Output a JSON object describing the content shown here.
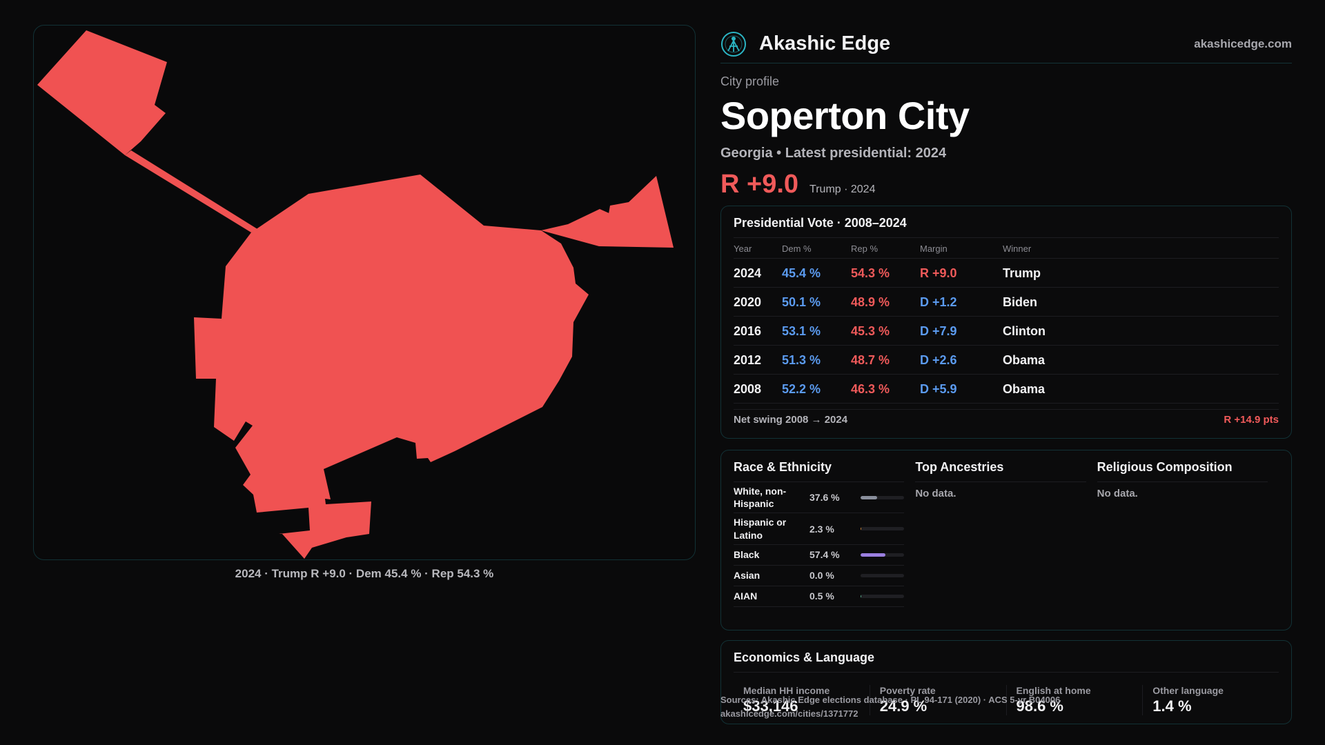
{
  "brand": {
    "name": "Akashic Edge",
    "site": "akashicedge.com"
  },
  "profile": {
    "eyebrow": "City profile",
    "title": "Soperton City",
    "subtitle": "Georgia • Latest presidential: 2024",
    "margin": "R +9.0",
    "margin_note": "Trump · 2024"
  },
  "map": {
    "caption": "2024 · Trump R +9.0 · Dem 45.4 % · Rep 54.3 %",
    "fill_color": "#f05252"
  },
  "vote": {
    "title": "Presidential Vote · 2008–2024",
    "columns": [
      "Year",
      "Dem %",
      "Rep %",
      "Margin",
      "Winner"
    ],
    "rows": [
      {
        "year": "2024",
        "dem": "45.4 %",
        "rep": "54.3 %",
        "margin": "R +9.0",
        "party": "R",
        "winner": "Trump"
      },
      {
        "year": "2020",
        "dem": "50.1 %",
        "rep": "48.9 %",
        "margin": "D +1.2",
        "party": "D",
        "winner": "Biden"
      },
      {
        "year": "2016",
        "dem": "53.1 %",
        "rep": "45.3 %",
        "margin": "D +7.9",
        "party": "D",
        "winner": "Clinton"
      },
      {
        "year": "2012",
        "dem": "51.3 %",
        "rep": "48.7 %",
        "margin": "D +2.6",
        "party": "D",
        "winner": "Obama"
      },
      {
        "year": "2008",
        "dem": "52.2 %",
        "rep": "46.3 %",
        "margin": "D +5.9",
        "party": "D",
        "winner": "Obama"
      }
    ],
    "swing_label": "Net swing 2008 → 2024",
    "swing_value": "R +14.9 pts"
  },
  "race": {
    "title": "Race & Ethnicity",
    "rows": [
      {
        "label": "White, non-Hispanic",
        "pct": "37.6 %",
        "value": 37.6,
        "color": "#8a8f9c"
      },
      {
        "label": "Hispanic or Latino",
        "pct": "2.3 %",
        "value": 2.3,
        "color": "#d08a3a"
      },
      {
        "label": "Black",
        "pct": "57.4 %",
        "value": 57.4,
        "color": "#9b7fe0"
      },
      {
        "label": "Asian",
        "pct": "0.0 %",
        "value": 0.0,
        "color": "#5b9bf0"
      },
      {
        "label": "AIAN",
        "pct": "0.5 %",
        "value": 0.5,
        "color": "#5bb08f"
      }
    ]
  },
  "ancestries": {
    "title": "Top Ancestries",
    "empty": "No data."
  },
  "religion": {
    "title": "Religious Composition",
    "empty": "No data."
  },
  "economics": {
    "title": "Economics & Language",
    "items": [
      {
        "label": "Median HH income",
        "value": "$33,146"
      },
      {
        "label": "Poverty rate",
        "value": "24.9 %"
      },
      {
        "label": "English at home",
        "value": "98.6 %"
      },
      {
        "label": "Other language",
        "value": "1.4 %"
      }
    ]
  },
  "source": {
    "line1": "Sources: Akashic Edge elections database · PL 94-171 (2020) · ACS 5-yr B04006",
    "line2": "akashicedge.com/cities/1371772"
  },
  "colors": {
    "dem": "#5b9bf0",
    "rep": "#f05a5a",
    "accent": "#2bb5c4"
  }
}
